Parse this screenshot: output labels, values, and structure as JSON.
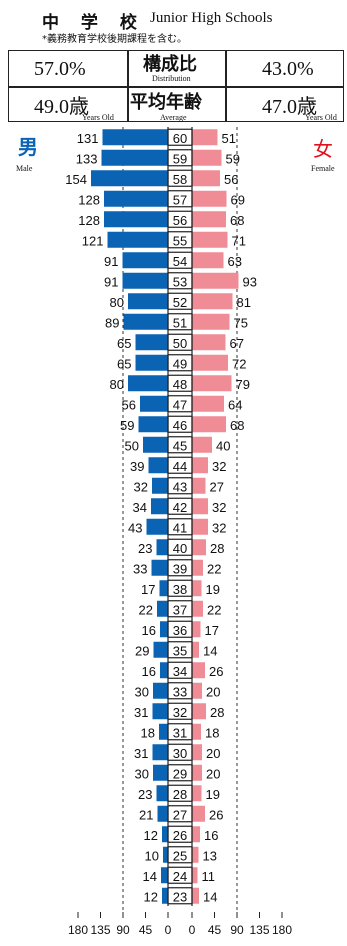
{
  "header": {
    "title_jp": "中 学 校",
    "title_en": "Junior High Schools",
    "note": "*義務教育学校後期課程を含む。"
  },
  "summary": {
    "male_ratio": "57.0%",
    "distribution_label": "構成比",
    "distribution_en": "Distribution",
    "female_ratio": "43.0%",
    "male_avg": "49.0歳",
    "male_avg_unit": "Years Old",
    "average_label": "平均年齢",
    "average_en": "Average",
    "female_avg": "47.0歳",
    "female_avg_unit": "Years Old"
  },
  "labels": {
    "male_jp": "男",
    "male_en": "Male",
    "female_jp": "女",
    "female_en": "Female"
  },
  "colors": {
    "male": "#0b63b4",
    "female": "#f08c96"
  },
  "chart_data": {
    "type": "bar",
    "orientation": "horizontal-population-pyramid",
    "categories": [
      "60",
      "59",
      "58",
      "57",
      "56",
      "55",
      "54",
      "53",
      "52",
      "51",
      "50",
      "49",
      "48",
      "47",
      "46",
      "45",
      "44",
      "43",
      "42",
      "41",
      "40",
      "39",
      "38",
      "37",
      "36",
      "35",
      "34",
      "33",
      "32",
      "31",
      "30",
      "29",
      "28",
      "27",
      "26",
      "25",
      "24",
      "23"
    ],
    "series": [
      {
        "name": "Male",
        "values": [
          131,
          133,
          154,
          128,
          128,
          121,
          91,
          91,
          80,
          89,
          65,
          65,
          80,
          56,
          59,
          50,
          39,
          32,
          34,
          43,
          23,
          33,
          17,
          22,
          16,
          29,
          16,
          30,
          31,
          18,
          31,
          30,
          23,
          21,
          12,
          10,
          14,
          12
        ]
      },
      {
        "name": "Female",
        "values": [
          51,
          59,
          56,
          69,
          68,
          71,
          63,
          93,
          81,
          75,
          67,
          72,
          79,
          64,
          68,
          40,
          32,
          27,
          32,
          32,
          28,
          22,
          19,
          22,
          17,
          14,
          26,
          20,
          28,
          18,
          20,
          20,
          19,
          26,
          16,
          13,
          11,
          14
        ]
      }
    ],
    "x_ticks_left": [
      "180",
      "135",
      "90",
      "45",
      "0"
    ],
    "x_ticks_right": [
      "0",
      "45",
      "90",
      "135",
      "180"
    ],
    "xlim": [
      0,
      180
    ]
  }
}
